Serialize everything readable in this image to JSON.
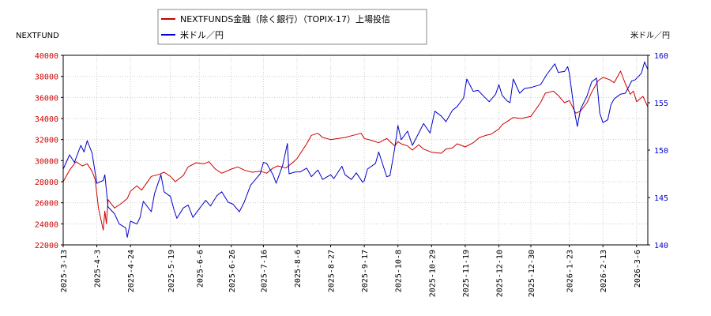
{
  "chart_data": {
    "type": "line",
    "left_axis_label": "NEXTFUND",
    "right_axis_label": "米ドル／円",
    "legend": [
      {
        "name": "NEXTFUNDS金融（除く銀行）（TOPIX-17）上場投信",
        "color": "#cc0000"
      },
      {
        "name": "米ドル／円",
        "color": "#0000cc"
      }
    ],
    "legend_position": "top-center",
    "grid": true,
    "y_left": {
      "min": 22000,
      "max": 40000,
      "ticks": [
        22000,
        24000,
        26000,
        28000,
        30000,
        32000,
        34000,
        36000,
        38000,
        40000
      ],
      "color": "#cc0000"
    },
    "y_right": {
      "min": 140,
      "max": 160,
      "ticks": [
        140,
        145,
        150,
        155,
        160
      ],
      "color": "#0000cc"
    },
    "x_start": "2025-03-13",
    "x_end": "2026-03-13",
    "x_ticks": [
      "2025-3-13",
      "2025-4-3",
      "2025-4-24",
      "2025-5-19",
      "2025-6-6",
      "2025-6-26",
      "2025-7-16",
      "2025-8-6",
      "2025-8-27",
      "2025-9-17",
      "2025-10-8",
      "2025-10-29",
      "2025-11-19",
      "2025-12-10",
      "2025-12-30",
      "2026-1-23",
      "2026-2-13",
      "2026-3-6"
    ],
    "series": [
      {
        "name": "NEXTFUNDS金融（除く銀行）（TOPIX-17）上場投信",
        "axis": "left",
        "color": "#cc0000",
        "points": [
          [
            "2025-03-13",
            28000
          ],
          [
            "2025-03-17",
            29100
          ],
          [
            "2025-03-21",
            29900
          ],
          [
            "2025-03-25",
            29500
          ],
          [
            "2025-03-28",
            29700
          ],
          [
            "2025-03-31",
            29000
          ],
          [
            "2025-04-02",
            28200
          ],
          [
            "2025-04-04",
            25500
          ],
          [
            "2025-04-07",
            23400
          ],
          [
            "2025-04-08",
            25200
          ],
          [
            "2025-04-09",
            24000
          ],
          [
            "2025-04-10",
            26300
          ],
          [
            "2025-04-14",
            25500
          ],
          [
            "2025-04-18",
            25900
          ],
          [
            "2025-04-22",
            26400
          ],
          [
            "2025-04-24",
            27100
          ],
          [
            "2025-04-28",
            27600
          ],
          [
            "2025-05-01",
            27200
          ],
          [
            "2025-05-07",
            28500
          ],
          [
            "2025-05-12",
            28700
          ],
          [
            "2025-05-15",
            28900
          ],
          [
            "2025-05-19",
            28500
          ],
          [
            "2025-05-22",
            28000
          ],
          [
            "2025-05-27",
            28600
          ],
          [
            "2025-05-30",
            29400
          ],
          [
            "2025-06-04",
            29800
          ],
          [
            "2025-06-09",
            29700
          ],
          [
            "2025-06-12",
            29900
          ],
          [
            "2025-06-16",
            29200
          ],
          [
            "2025-06-20",
            28800
          ],
          [
            "2025-06-26",
            29200
          ],
          [
            "2025-06-30",
            29400
          ],
          [
            "2025-07-04",
            29100
          ],
          [
            "2025-07-09",
            28900
          ],
          [
            "2025-07-14",
            29000
          ],
          [
            "2025-07-18",
            28800
          ],
          [
            "2025-07-22",
            29300
          ],
          [
            "2025-07-25",
            29500
          ],
          [
            "2025-07-30",
            29300
          ],
          [
            "2025-08-04",
            29900
          ],
          [
            "2025-08-06",
            30200
          ],
          [
            "2025-08-12",
            31600
          ],
          [
            "2025-08-15",
            32400
          ],
          [
            "2025-08-19",
            32600
          ],
          [
            "2025-08-22",
            32200
          ],
          [
            "2025-08-27",
            32000
          ],
          [
            "2025-09-01",
            32100
          ],
          [
            "2025-09-05",
            32200
          ],
          [
            "2025-09-10",
            32400
          ],
          [
            "2025-09-15",
            32600
          ],
          [
            "2025-09-17",
            32100
          ],
          [
            "2025-09-22",
            31900
          ],
          [
            "2025-09-26",
            31700
          ],
          [
            "2025-10-01",
            32100
          ],
          [
            "2025-10-06",
            31400
          ],
          [
            "2025-10-08",
            31800
          ],
          [
            "2025-10-10",
            31600
          ],
          [
            "2025-10-14",
            31400
          ],
          [
            "2025-10-17",
            31000
          ],
          [
            "2025-10-21",
            31500
          ],
          [
            "2025-10-24",
            31100
          ],
          [
            "2025-10-29",
            30800
          ],
          [
            "2025-11-04",
            30700
          ],
          [
            "2025-11-07",
            31100
          ],
          [
            "2025-11-11",
            31200
          ],
          [
            "2025-11-14",
            31600
          ],
          [
            "2025-11-19",
            31300
          ],
          [
            "2025-11-24",
            31700
          ],
          [
            "2025-11-28",
            32200
          ],
          [
            "2025-12-02",
            32400
          ],
          [
            "2025-12-05",
            32500
          ],
          [
            "2025-12-10",
            33000
          ],
          [
            "2025-12-12",
            33400
          ],
          [
            "2025-12-16",
            33800
          ],
          [
            "2025-12-19",
            34100
          ],
          [
            "2025-12-24",
            34000
          ],
          [
            "2025-12-30",
            34200
          ],
          [
            "2026-01-05",
            35500
          ],
          [
            "2026-01-08",
            36400
          ],
          [
            "2026-01-13",
            36600
          ],
          [
            "2026-01-16",
            36200
          ],
          [
            "2026-01-20",
            35500
          ],
          [
            "2026-01-23",
            35700
          ],
          [
            "2026-01-27",
            34500
          ],
          [
            "2026-01-30",
            34700
          ],
          [
            "2026-02-03",
            35500
          ],
          [
            "2026-02-06",
            36500
          ],
          [
            "2026-02-10",
            37600
          ],
          [
            "2026-02-13",
            37900
          ],
          [
            "2026-02-17",
            37700
          ],
          [
            "2026-02-20",
            37400
          ],
          [
            "2026-02-24",
            38500
          ],
          [
            "2026-02-27",
            37300
          ],
          [
            "2026-03-02",
            36300
          ],
          [
            "2026-03-04",
            36600
          ],
          [
            "2026-03-06",
            35600
          ],
          [
            "2026-03-10",
            36100
          ],
          [
            "2026-03-13",
            35100
          ]
        ]
      },
      {
        "name": "米ドル／円",
        "axis": "right",
        "color": "#0000cc",
        "points": [
          [
            "2025-03-13",
            148.0
          ],
          [
            "2025-03-17",
            149.5
          ],
          [
            "2025-03-20",
            148.7
          ],
          [
            "2025-03-24",
            150.5
          ],
          [
            "2025-03-26",
            149.8
          ],
          [
            "2025-03-28",
            151.0
          ],
          [
            "2025-03-31",
            149.7
          ],
          [
            "2025-04-03",
            146.5
          ],
          [
            "2025-04-07",
            146.8
          ],
          [
            "2025-04-08",
            147.4
          ],
          [
            "2025-04-10",
            144.0
          ],
          [
            "2025-04-14",
            143.3
          ],
          [
            "2025-04-17",
            142.2
          ],
          [
            "2025-04-21",
            141.8
          ],
          [
            "2025-04-22",
            140.8
          ],
          [
            "2025-04-24",
            142.5
          ],
          [
            "2025-04-28",
            142.2
          ],
          [
            "2025-04-30",
            142.9
          ],
          [
            "2025-05-02",
            144.6
          ],
          [
            "2025-05-07",
            143.5
          ],
          [
            "2025-05-09",
            145.4
          ],
          [
            "2025-05-13",
            147.4
          ],
          [
            "2025-05-15",
            145.6
          ],
          [
            "2025-05-19",
            145.1
          ],
          [
            "2025-05-21",
            143.8
          ],
          [
            "2025-05-23",
            142.8
          ],
          [
            "2025-05-27",
            143.9
          ],
          [
            "2025-05-30",
            144.2
          ],
          [
            "2025-06-02",
            142.9
          ],
          [
            "2025-06-05",
            143.6
          ],
          [
            "2025-06-10",
            144.7
          ],
          [
            "2025-06-13",
            144.1
          ],
          [
            "2025-06-17",
            145.2
          ],
          [
            "2025-06-20",
            145.6
          ],
          [
            "2025-06-24",
            144.5
          ],
          [
            "2025-06-27",
            144.3
          ],
          [
            "2025-07-01",
            143.5
          ],
          [
            "2025-07-04",
            144.5
          ],
          [
            "2025-07-08",
            146.3
          ],
          [
            "2025-07-11",
            146.9
          ],
          [
            "2025-07-14",
            147.5
          ],
          [
            "2025-07-16",
            148.7
          ],
          [
            "2025-07-18",
            148.6
          ],
          [
            "2025-07-22",
            147.4
          ],
          [
            "2025-07-24",
            146.5
          ],
          [
            "2025-07-28",
            148.4
          ],
          [
            "2025-07-31",
            150.7
          ],
          [
            "2025-08-01",
            147.5
          ],
          [
            "2025-08-05",
            147.7
          ],
          [
            "2025-08-08",
            147.7
          ],
          [
            "2025-08-12",
            148.1
          ],
          [
            "2025-08-15",
            147.2
          ],
          [
            "2025-08-19",
            147.9
          ],
          [
            "2025-08-22",
            146.9
          ],
          [
            "2025-08-27",
            147.4
          ],
          [
            "2025-08-29",
            147.0
          ],
          [
            "2025-09-03",
            148.3
          ],
          [
            "2025-09-05",
            147.4
          ],
          [
            "2025-09-09",
            146.9
          ],
          [
            "2025-09-12",
            147.6
          ],
          [
            "2025-09-16",
            146.6
          ],
          [
            "2025-09-17",
            146.8
          ],
          [
            "2025-09-19",
            148.0
          ],
          [
            "2025-09-24",
            148.6
          ],
          [
            "2025-09-26",
            149.8
          ],
          [
            "2025-10-01",
            147.2
          ],
          [
            "2025-10-03",
            147.3
          ],
          [
            "2025-10-06",
            150.2
          ],
          [
            "2025-10-08",
            152.6
          ],
          [
            "2025-10-10",
            151.1
          ],
          [
            "2025-10-14",
            152.0
          ],
          [
            "2025-10-17",
            150.5
          ],
          [
            "2025-10-21",
            151.8
          ],
          [
            "2025-10-24",
            152.8
          ],
          [
            "2025-10-28",
            151.8
          ],
          [
            "2025-10-31",
            154.1
          ],
          [
            "2025-11-04",
            153.6
          ],
          [
            "2025-11-07",
            153.0
          ],
          [
            "2025-11-11",
            154.2
          ],
          [
            "2025-11-14",
            154.6
          ],
          [
            "2025-11-18",
            155.5
          ],
          [
            "2025-11-20",
            157.5
          ],
          [
            "2025-11-24",
            156.2
          ],
          [
            "2025-11-27",
            156.3
          ],
          [
            "2025-12-01",
            155.6
          ],
          [
            "2025-12-04",
            155.1
          ],
          [
            "2025-12-08",
            155.9
          ],
          [
            "2025-12-10",
            156.9
          ],
          [
            "2025-12-12",
            155.8
          ],
          [
            "2025-12-15",
            155.2
          ],
          [
            "2025-12-17",
            155.0
          ],
          [
            "2025-12-19",
            157.5
          ],
          [
            "2025-12-23",
            156.0
          ],
          [
            "2025-12-26",
            156.5
          ],
          [
            "2025-12-30",
            156.6
          ],
          [
            "2026-01-05",
            156.9
          ],
          [
            "2026-01-09",
            158.0
          ],
          [
            "2026-01-14",
            159.1
          ],
          [
            "2026-01-16",
            158.2
          ],
          [
            "2026-01-20",
            158.3
          ],
          [
            "2026-01-22",
            158.8
          ],
          [
            "2026-01-23",
            158.1
          ],
          [
            "2026-01-26",
            154.3
          ],
          [
            "2026-01-28",
            152.5
          ],
          [
            "2026-01-30",
            154.3
          ],
          [
            "2026-02-03",
            155.7
          ],
          [
            "2026-02-06",
            157.2
          ],
          [
            "2026-02-09",
            157.6
          ],
          [
            "2026-02-11",
            153.9
          ],
          [
            "2026-02-13",
            152.9
          ],
          [
            "2026-02-16",
            153.2
          ],
          [
            "2026-02-18",
            154.8
          ],
          [
            "2026-02-20",
            155.4
          ],
          [
            "2026-02-24",
            155.9
          ],
          [
            "2026-02-27",
            156.0
          ],
          [
            "2026-03-03",
            157.3
          ],
          [
            "2026-03-05",
            157.4
          ],
          [
            "2026-03-09",
            158.1
          ],
          [
            "2026-03-11",
            159.3
          ],
          [
            "2026-03-13",
            158.5
          ]
        ]
      }
    ]
  }
}
